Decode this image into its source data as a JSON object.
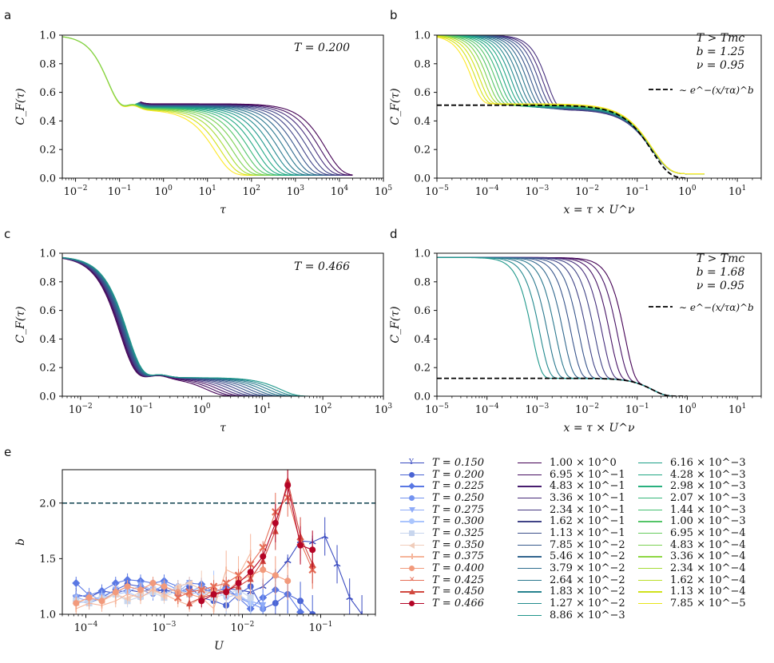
{
  "panel_letters": {
    "a": "a",
    "b": "b",
    "c": "c",
    "d": "d",
    "e": "e"
  },
  "annotations": {
    "a": "T = 0.200",
    "b": [
      "T > Tmc",
      "b = 1.25",
      "ν = 0.95"
    ],
    "c": "T = 0.466",
    "d": [
      "T > Tmc",
      "b = 1.68",
      "ν = 0.95"
    ],
    "kww_label": "∼ e^−(x/τα)^b"
  },
  "chart_data": [
    {
      "id": "a",
      "type": "line",
      "title": "",
      "xlabel": "τ",
      "ylabel": "C_F(τ)",
      "xscale": "log",
      "xlim": [
        0.005,
        100000
      ],
      "ylim": [
        0,
        1.0
      ],
      "xticks": [
        "10^-2",
        "10^-1",
        "10^0",
        "10^1",
        "10^2",
        "10^3",
        "10^4",
        "10^5"
      ],
      "yticks": [
        "0.0",
        "0.2",
        "0.4",
        "0.6",
        "0.8",
        "1.0"
      ],
      "curves": {
        "count": 20,
        "plateau_min": 0.48,
        "plateau_max": 0.52,
        "decay_tau_min": 15,
        "decay_tau_max": 5000,
        "colormap": "viridis (dark = high U, yellow = low U)"
      }
    },
    {
      "id": "b",
      "type": "line",
      "xlabel": "x = τ × U^ν",
      "ylabel": "C_F(τ)",
      "xscale": "log",
      "xlim": [
        1e-05,
        30
      ],
      "ylim": [
        0,
        1.0
      ],
      "xticks": [
        "10^-5",
        "10^-4",
        "10^-3",
        "10^-2",
        "10^-1",
        "10^0",
        "10^1"
      ],
      "yticks": [
        "0.0",
        "0.2",
        "0.4",
        "0.6",
        "0.8",
        "1.0"
      ],
      "fit": {
        "form": "A·exp(−(x/τα)^b)",
        "A": 0.51,
        "tau_alpha": 0.2,
        "b": 1.25,
        "nu": 0.95
      }
    },
    {
      "id": "c",
      "type": "line",
      "xlabel": "τ",
      "ylabel": "C_F(τ)",
      "xscale": "log",
      "xlim": [
        0.005,
        1000
      ],
      "ylim": [
        0,
        1.0
      ],
      "xticks": [
        "10^-2",
        "10^-1",
        "10^0",
        "10^1",
        "10^2",
        "10^3"
      ],
      "yticks": [
        "0.0",
        "0.2",
        "0.4",
        "0.6",
        "0.8",
        "1.0"
      ],
      "curves": {
        "count": 13,
        "plateau": 0.13,
        "decay_tau_min": 1.2,
        "decay_tau_max": 20,
        "colormap": "viridis (dark = high U)"
      }
    },
    {
      "id": "d",
      "type": "line",
      "xlabel": "x = τ × U^ν",
      "ylabel": "C_F(τ)",
      "xscale": "log",
      "xlim": [
        1e-05,
        30
      ],
      "ylim": [
        0,
        1.0
      ],
      "xticks": [
        "10^-5",
        "10^-4",
        "10^-3",
        "10^-2",
        "10^-1",
        "10^0",
        "10^1"
      ],
      "yticks": [
        "0.0",
        "0.2",
        "0.4",
        "0.6",
        "0.8",
        "1.0"
      ],
      "fit": {
        "form": "A·exp(−(x/τα)^b)",
        "A": 0.125,
        "tau_alpha": 0.2,
        "b": 1.68,
        "nu": 0.95
      }
    },
    {
      "id": "e",
      "type": "scatter",
      "xlabel": "U",
      "ylabel": "b",
      "xscale": "log",
      "xlim": [
        5e-05,
        0.5
      ],
      "ylim": [
        1.0,
        2.3
      ],
      "xticks": [
        "10^-4",
        "10^-3",
        "10^-2",
        "10^-1"
      ],
      "yticks": [
        "1.0",
        "1.5",
        "2.0"
      ],
      "reference_line": 2.0,
      "x": [
        7.5e-05,
        0.00011,
        0.00016,
        0.00024,
        0.00034,
        0.0005,
        0.00072,
        0.001,
        0.0015,
        0.0021,
        0.003,
        0.0043,
        0.0062,
        0.0089,
        0.0127,
        0.0183,
        0.0264,
        0.0379,
        0.055,
        0.0785,
        0.113,
        0.162,
        0.234,
        0.336
      ],
      "series": [
        {
          "name": "T = 0.150",
          "color": "#3b4cc0",
          "marker": "tri",
          "values": [
            1.18,
            1.15,
            1.21,
            1.19,
            1.22,
            1.2,
            1.23,
            1.21,
            1.22,
            1.2,
            1.22,
            1.21,
            1.23,
            1.22,
            1.2,
            1.25,
            1.35,
            1.48,
            1.66,
            1.65,
            1.7,
            1.45,
            1.15,
            1.0
          ]
        },
        {
          "name": "T = 0.200",
          "color": "#4a63d3",
          "marker": "circle",
          "values": [
            1.12,
            1.1,
            1.15,
            1.22,
            1.27,
            1.25,
            1.2,
            1.22,
            1.18,
            1.25,
            1.15,
            1.12,
            1.08,
            1.18,
            1.25,
            1.05,
            1.1,
            1.18,
            1.12,
            1.0
          ]
        },
        {
          "name": "T = 0.225",
          "color": "#5a78e4",
          "marker": "diamond",
          "values": [
            1.28,
            1.17,
            1.21,
            1.28,
            1.31,
            1.3,
            1.28,
            1.3,
            1.25,
            1.28,
            1.27,
            1.2,
            1.24,
            1.15,
            1.05,
            1.15,
            1.22,
            1.18,
            1.02
          ]
        },
        {
          "name": "T = 0.250",
          "color": "#7393f0",
          "marker": "pentagon",
          "values": [
            1.15,
            1.18,
            1.12,
            1.2,
            1.25,
            1.22,
            1.18,
            1.28,
            1.22,
            1.2,
            1.25,
            1.18,
            1.22,
            1.15,
            1.1,
            1.05
          ]
        },
        {
          "name": "T = 0.275",
          "color": "#8eabf8",
          "marker": "triangle-down",
          "values": [
            1.15,
            1.12,
            1.16,
            1.22,
            1.2,
            1.26,
            1.22,
            1.25,
            1.2,
            1.28,
            1.22,
            1.18,
            1.21,
            1.15,
            1.12,
            1.08
          ]
        },
        {
          "name": "T = 0.300",
          "color": "#aac5fd",
          "marker": "hexagon",
          "values": [
            1.1,
            1.12,
            1.15,
            1.18,
            1.2,
            1.15,
            1.22,
            1.18,
            1.25,
            1.2,
            1.18,
            1.22,
            1.15,
            1.18,
            1.1
          ]
        },
        {
          "name": "T = 0.325",
          "color": "#c8d6ee",
          "marker": "square",
          "values": [
            1.12,
            1.1,
            1.14,
            1.18,
            1.12,
            1.16,
            1.2,
            1.15,
            1.22,
            1.18,
            1.2,
            1.15,
            1.18,
            1.22,
            1.15
          ]
        },
        {
          "name": "T = 0.350",
          "color": "#f0cdbb",
          "marker": "triangle-left",
          "values": [
            1.1,
            1.15,
            1.12,
            1.18,
            1.14,
            1.2,
            1.22,
            1.16,
            1.25,
            1.28,
            1.22,
            1.18,
            1.2,
            1.15
          ]
        },
        {
          "name": "T = 0.375",
          "color": "#f6b59a",
          "marker": "vbar",
          "values": [
            1.05,
            1.1,
            1.08,
            1.12,
            1.18,
            1.15,
            1.22,
            1.18,
            1.12,
            1.08,
            1.15,
            1.05,
            1.4,
            1.35,
            1.55
          ]
        },
        {
          "name": "T = 0.400",
          "color": "#f29a7c",
          "marker": "circle",
          "values": [
            1.1,
            1.15,
            1.12,
            1.2,
            1.25,
            1.22,
            1.28,
            1.25,
            1.2,
            1.18,
            1.15,
            1.22,
            1.2,
            1.3,
            1.35,
            1.4,
            1.35,
            1.3
          ]
        },
        {
          "name": "T = 0.425",
          "color": "#e66e57",
          "marker": "cross",
          "values": [
            1.15,
            1.2,
            1.22,
            1.25,
            1.28,
            1.35,
            1.45,
            1.6,
            1.92,
            2.05,
            1.65,
            1.4
          ]
        },
        {
          "name": "T = 0.450",
          "color": "#d1493f",
          "marker": "triangle",
          "values": [
            1.1,
            1.15,
            1.18,
            1.22,
            1.25,
            1.32,
            1.48,
            1.75,
            2.2,
            1.7,
            1.45
          ]
        },
        {
          "name": "T = 0.466",
          "color": "#b40426",
          "marker": "circle",
          "values": [
            1.12,
            1.18,
            1.2,
            1.28,
            1.38,
            1.52,
            1.82,
            2.16,
            1.62,
            1.58
          ]
        }
      ]
    }
  ],
  "colorbar_legend": {
    "values": [
      "1.00 × 10^0",
      "6.95 × 10^−1",
      "4.83 × 10^−1",
      "3.36 × 10^−1",
      "2.34 × 10^−1",
      "1.62 × 10^−1",
      "1.13 × 10^−1",
      "7.85 × 10^−2",
      "5.46 × 10^−2",
      "3.79 × 10^−2",
      "2.64 × 10^−2",
      "1.83 × 10^−2",
      "1.27 × 10^−2",
      "8.86 × 10^−3",
      "6.16 × 10^−3",
      "4.28 × 10^−3",
      "2.98 × 10^−3",
      "2.07 × 10^−3",
      "1.44 × 10^−3",
      "1.00 × 10^−3",
      "6.95 × 10^−4",
      "4.83 × 10^−4",
      "3.36 × 10^−4",
      "2.34 × 10^−4",
      "1.62 × 10^−4",
      "1.13 × 10^−4",
      "7.85 × 10^−5"
    ],
    "colors": [
      "#440154",
      "#470f62",
      "#481d6f",
      "#472a7a",
      "#453781",
      "#414487",
      "#3c4f8a",
      "#375a8c",
      "#32658e",
      "#2e6e8e",
      "#2a788e",
      "#26828e",
      "#228b8d",
      "#1f958b",
      "#1fa088",
      "#22a884",
      "#2ab07f",
      "#35b779",
      "#44bf70",
      "#54c568",
      "#66cb5d",
      "#7ad151",
      "#8fd744",
      "#a5db36",
      "#bade28",
      "#d0e11c",
      "#e7e419"
    ]
  }
}
